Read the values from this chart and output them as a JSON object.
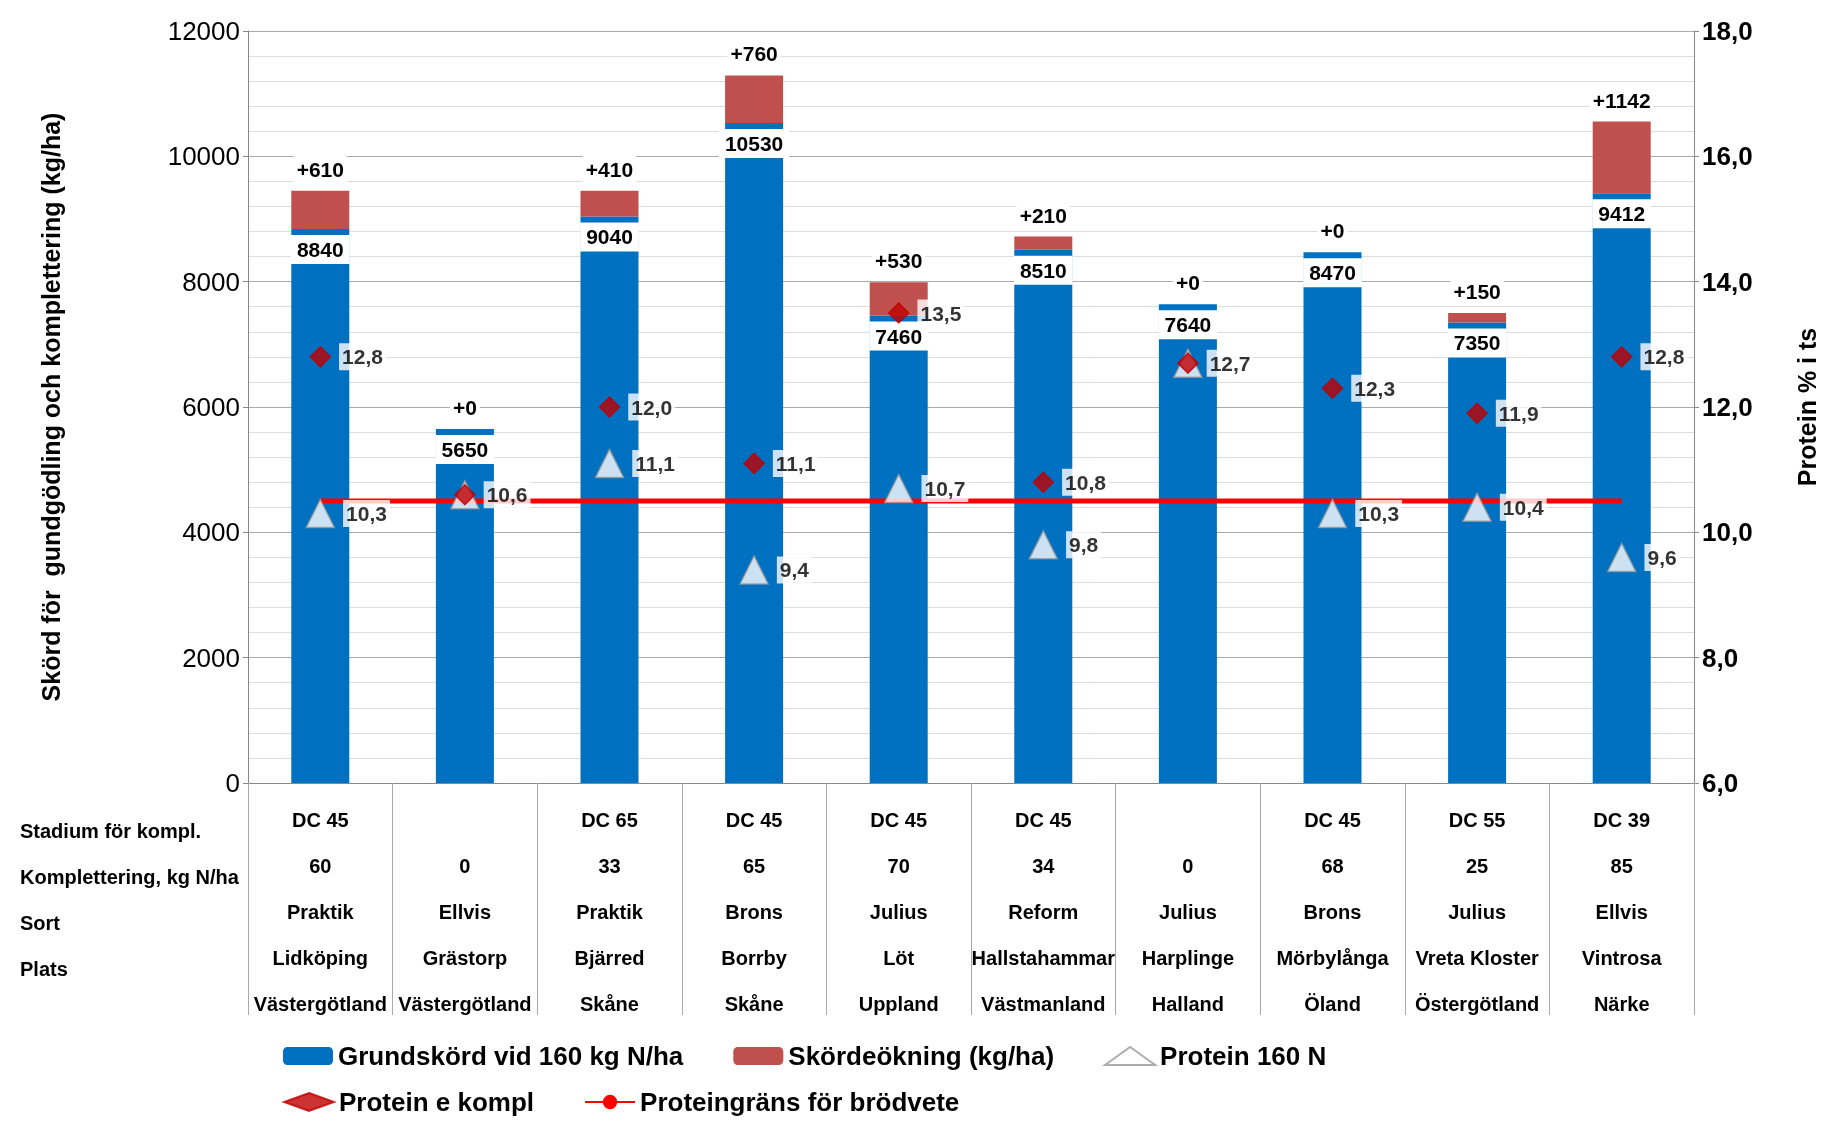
{
  "chart_data": {
    "type": "bar",
    "stacked": true,
    "ylabel": "Skörd för  gundgödling och komplettering (kg/ha)",
    "y2label": "Protein % i ts",
    "categories": [
      "DC 45\n60\nPraktik\nLidköping\nVästergötland",
      "\n0\nEllvis\nGrästorp\nVästergötland",
      "DC 65\n33\nPraktik\nBjärred\nSkåne",
      "DC 45\n65\nBrons\nBorrby\nSkåne",
      "DC 45\n70\nJulius\nLöt\nUppland",
      "DC 45\n34\nReform\nHallstahammar\nVästmanland",
      "\n0\nJulius\nHarplinge\nHalland",
      "DC 45\n68\nBrons\nMörbylånga\nÖland",
      "DC 55\n25\nJulius\nVreta Kloster\nÖstergötland",
      "DC 39\n85\nEllvis\nVintrosa\nNärke"
    ],
    "ylim": [
      0,
      12000
    ],
    "yticks": [
      0,
      2000,
      4000,
      6000,
      8000,
      10000,
      12000
    ],
    "y2lim": [
      6,
      18
    ],
    "y2ticks": [
      {
        "value": 6,
        "label": "6,0"
      },
      {
        "value": 8,
        "label": "8,0"
      },
      {
        "value": 10,
        "label": "10,0"
      },
      {
        "value": 12,
        "label": "12,0"
      },
      {
        "value": 14,
        "label": "14,0"
      },
      {
        "value": 16,
        "label": "16,0"
      },
      {
        "value": 18,
        "label": "18,0"
      }
    ],
    "grid": "y",
    "legend": "bottom",
    "annotations": [
      "Stadium för kompl.",
      "Komplettering, kg N/ha",
      "Sort",
      "Plats"
    ],
    "series": [
      {
        "name": "Grundskörd vid 160 kg N/ha",
        "color": "#0070c0",
        "values": [
          8840,
          5650,
          9040,
          10530,
          7460,
          8510,
          7640,
          8470,
          7350,
          9412
        ],
        "value_labels": [
          "8840",
          "5650",
          "9040",
          "10530",
          "7460",
          "8510",
          "7640",
          "8470",
          "7350",
          "9412"
        ]
      },
      {
        "name": "Skördeökning (kg/ha)",
        "color": "#c0504d",
        "values": [
          610,
          0,
          410,
          760,
          530,
          210,
          0,
          0,
          150,
          1142
        ],
        "value_labels": [
          "+610",
          "+0",
          "+410",
          "+760",
          "+530",
          "+210",
          "+0",
          "+0",
          "+150",
          "+1142"
        ]
      },
      {
        "name": "Protein 160 N",
        "type": "scatter",
        "axis": "y2",
        "marker": "triangle",
        "color": "#ffffff",
        "values": [
          10.3,
          10.6,
          11.1,
          9.4,
          10.7,
          9.8,
          12.7,
          10.3,
          10.4,
          9.6
        ],
        "value_labels": [
          "10,3",
          null,
          "11,1",
          "9,4",
          "10,7",
          "9,8",
          null,
          "10,3",
          "10,4",
          "9,6"
        ]
      },
      {
        "name": "Protein e kompl",
        "type": "scatter",
        "axis": "y2",
        "marker": "diamond",
        "color": "#c00000",
        "values": [
          12.8,
          10.6,
          12.0,
          11.1,
          13.5,
          10.8,
          12.7,
          12.3,
          11.9,
          12.8
        ],
        "value_labels": [
          "12,8",
          "10,6",
          "12,0",
          "11,1",
          "13,5",
          "10,8",
          "12,7",
          "12,3",
          "11,9",
          "12,8"
        ]
      },
      {
        "name": "Proteingräns för brödvete",
        "type": "line",
        "axis": "y2",
        "marker": "none",
        "color": "#ff0000",
        "values": [
          10.5,
          10.5,
          10.5,
          10.5,
          10.5,
          10.5,
          10.5,
          10.5,
          10.5,
          10.5
        ]
      }
    ]
  }
}
